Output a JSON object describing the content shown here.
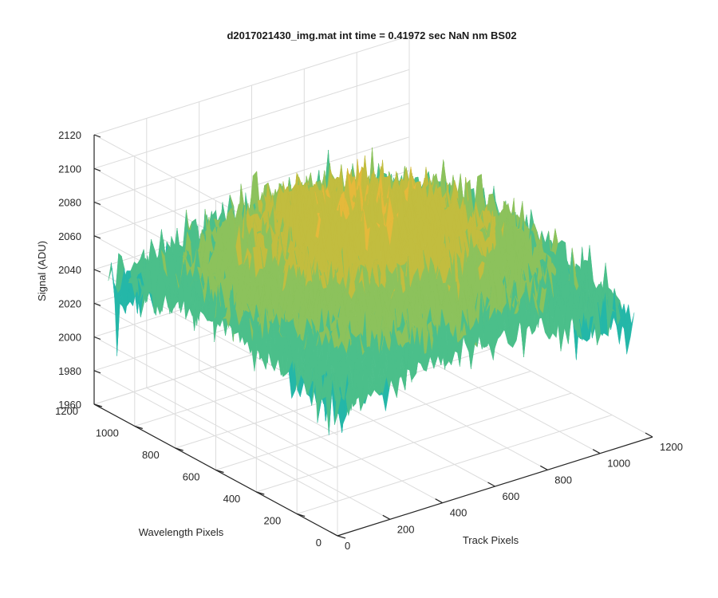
{
  "chart_data": {
    "type": "surface",
    "title": "d2017021430_img.mat int time = 0.41972 sec  NaN nm BS02",
    "xlabel": "Track Pixels",
    "ylabel": "Wavelength Pixels",
    "zlabel": "Signal (ADU)",
    "xlim": [
      0,
      1200
    ],
    "ylim": [
      0,
      1200
    ],
    "zlim": [
      1960,
      2120
    ],
    "x_ticks": [
      "0",
      "200",
      "400",
      "600",
      "800",
      "1000",
      "1200"
    ],
    "y_ticks": [
      "0",
      "200",
      "400",
      "600",
      "800",
      "1000",
      "1200"
    ],
    "z_ticks": [
      "1960",
      "1980",
      "2000",
      "2020",
      "2040",
      "2060",
      "2080",
      "2100",
      "2120"
    ],
    "x_tick_values": [
      0,
      200,
      400,
      600,
      800,
      1000,
      1200
    ],
    "y_tick_values": [
      0,
      200,
      400,
      600,
      800,
      1000,
      1200
    ],
    "z_tick_values": [
      1960,
      1980,
      2000,
      2020,
      2040,
      2060,
      2080,
      2100,
      2120
    ],
    "surface_extent": {
      "x": [
        0,
        1130
      ],
      "y": [
        0,
        1130
      ]
    },
    "surface_stats": {
      "mean": 2020,
      "peak": 2088,
      "min": 1966,
      "max": 2108
    },
    "colormap": [
      "#0f5cd9",
      "#1a86d6",
      "#1aa7c2",
      "#24b7a8",
      "#4bbf8a",
      "#8cc25c",
      "#c2bd3f",
      "#e5b93b"
    ],
    "grid": true
  }
}
